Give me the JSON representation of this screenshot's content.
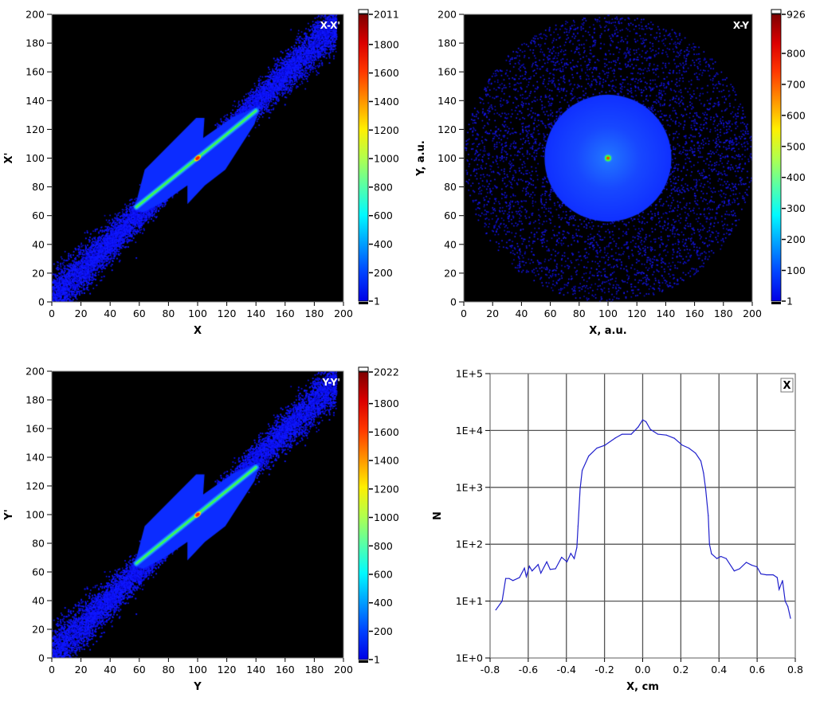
{
  "chart_data": [
    {
      "type": "heatmap",
      "title": "X-X'",
      "xlabel": "X",
      "ylabel": "X'",
      "xlim": [
        0,
        200
      ],
      "ylim": [
        0,
        200
      ],
      "xticks": [
        "0",
        "20",
        "40",
        "60",
        "80",
        "100",
        "120",
        "140",
        "160",
        "180",
        "200"
      ],
      "yticks": [
        "0",
        "20",
        "40",
        "60",
        "80",
        "100",
        "120",
        "140",
        "160",
        "180",
        "200"
      ],
      "colorbar": {
        "min": 1,
        "max": 2011,
        "colormap": "jet",
        "ticks": [
          "1",
          "200",
          "400",
          "600",
          "800",
          "1000",
          "1200",
          "1400",
          "1600",
          "1800",
          "2011"
        ]
      },
      "distribution": "diagonal"
    },
    {
      "type": "heatmap",
      "title": "X-Y",
      "xlabel": "X, a.u.",
      "ylabel": "Y, a.u.",
      "xlim": [
        0,
        200
      ],
      "ylim": [
        0,
        200
      ],
      "xticks": [
        "0",
        "20",
        "40",
        "60",
        "80",
        "100",
        "120",
        "140",
        "160",
        "180",
        "200"
      ],
      "yticks": [
        "0",
        "20",
        "40",
        "60",
        "80",
        "100",
        "120",
        "140",
        "160",
        "180",
        "200"
      ],
      "colorbar": {
        "min": 1,
        "max": 926,
        "colormap": "jet",
        "ticks": [
          "1",
          "100",
          "200",
          "300",
          "400",
          "500",
          "600",
          "700",
          "800",
          "926"
        ]
      },
      "distribution": "radial"
    },
    {
      "type": "heatmap",
      "title": "Y-Y'",
      "xlabel": "Y",
      "ylabel": "Y'",
      "xlim": [
        0,
        200
      ],
      "ylim": [
        0,
        200
      ],
      "xticks": [
        "0",
        "20",
        "40",
        "60",
        "80",
        "100",
        "120",
        "140",
        "160",
        "180",
        "200"
      ],
      "yticks": [
        "0",
        "20",
        "40",
        "60",
        "80",
        "100",
        "120",
        "140",
        "160",
        "180",
        "200"
      ],
      "colorbar": {
        "min": 1,
        "max": 2022,
        "colormap": "jet",
        "ticks": [
          "1",
          "200",
          "400",
          "600",
          "800",
          "1000",
          "1200",
          "1400",
          "1600",
          "1800",
          "2022"
        ]
      },
      "distribution": "diagonal"
    },
    {
      "type": "line",
      "xlabel": "X, cm",
      "ylabel": "N",
      "xlim": [
        -0.8,
        0.8
      ],
      "ylim": [
        1,
        100000
      ],
      "yscale": "log",
      "grid": true,
      "legend": {
        "entries": [
          "X"
        ],
        "position": "top-right"
      },
      "xticks": [
        "-0.8",
        "-0.6",
        "-0.4",
        "-0.2",
        "0.0",
        "0.2",
        "0.4",
        "0.6",
        "0.8"
      ],
      "yticks": [
        "1E+0",
        "1E+1",
        "1E+2",
        "1E+3",
        "1E+4",
        "1E+5"
      ],
      "series": [
        {
          "name": "X",
          "color": "#2020cc",
          "x": [
            -0.77,
            -0.737,
            -0.718,
            -0.7,
            -0.68,
            -0.646,
            -0.62,
            -0.61,
            -0.594,
            -0.58,
            -0.548,
            -0.534,
            -0.503,
            -0.485,
            -0.457,
            -0.425,
            -0.397,
            -0.377,
            -0.359,
            -0.345,
            -0.339,
            -0.328,
            -0.317,
            -0.283,
            -0.24,
            -0.198,
            -0.143,
            -0.108,
            -0.06,
            -0.024,
            0.0,
            0.017,
            0.04,
            0.08,
            0.124,
            0.166,
            0.208,
            0.242,
            0.277,
            0.305,
            0.319,
            0.33,
            0.344,
            0.35,
            0.361,
            0.389,
            0.41,
            0.438,
            0.48,
            0.508,
            0.543,
            0.571,
            0.599,
            0.62,
            0.649,
            0.684,
            0.705,
            0.715,
            0.733,
            0.747,
            0.761,
            0.775
          ],
          "y": [
            7,
            10,
            25,
            25,
            23,
            26,
            38,
            27,
            41,
            34,
            44,
            31,
            49,
            36,
            37,
            59,
            49,
            69,
            56,
            88,
            208,
            940,
            1990,
            3560,
            4900,
            5500,
            7400,
            8600,
            8600,
            11500,
            15400,
            14300,
            10500,
            8600,
            8300,
            7300,
            5500,
            4900,
            4000,
            2900,
            1780,
            940,
            318,
            100,
            68,
            56,
            61,
            56,
            34,
            37,
            48,
            43,
            40,
            30,
            29,
            29,
            26,
            16,
            23,
            10,
            8,
            5
          ]
        }
      ]
    }
  ]
}
